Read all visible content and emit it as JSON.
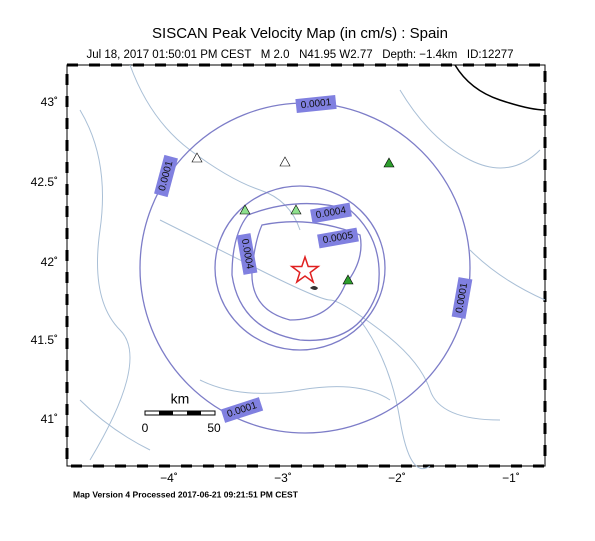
{
  "header": {
    "title": "SISCAN Peak Velocity Map (in cm/s) : Spain",
    "subtitle": "Jul 18, 2017 01:50:01 PM CEST   M 2.0   N41.95 W2.77   Depth: −1.4km   ID:12277"
  },
  "map": {
    "lat_labels": [
      "43˚",
      "42.5˚",
      "42˚",
      "41.5˚",
      "41˚"
    ],
    "lon_labels": [
      "−4˚",
      "−3˚",
      "−2˚",
      "−1˚"
    ],
    "contour_labels": [
      "0.0001",
      "0.0001",
      "0.0001",
      "0.0001",
      "0.0004",
      "0.0004",
      "0.0005"
    ],
    "scale": {
      "unit": "km",
      "start": "0",
      "end": "50"
    }
  },
  "footer": "Map Version 4 Processed 2017-06-21 09:21:51 PM CEST"
}
